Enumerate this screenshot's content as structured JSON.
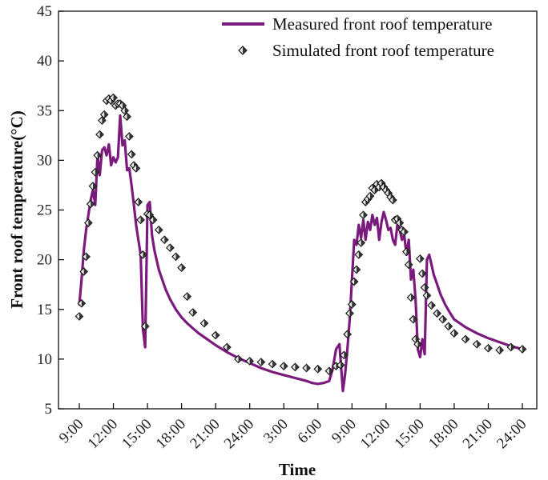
{
  "chart_data": {
    "type": "line",
    "title": "",
    "xlabel": "Time",
    "ylabel": "Front roof temperature(°C)",
    "ylim": [
      5,
      45
    ],
    "yticks": [
      5,
      10,
      15,
      20,
      25,
      30,
      35,
      40,
      45
    ],
    "xlim": [
      9,
      48
    ],
    "xticks": [
      {
        "x": 9,
        "label": "9:00"
      },
      {
        "x": 12,
        "label": "12:00"
      },
      {
        "x": 15,
        "label": "15:00"
      },
      {
        "x": 18,
        "label": "18:00"
      },
      {
        "x": 21,
        "label": "21:00"
      },
      {
        "x": 24,
        "label": "24:00"
      },
      {
        "x": 27,
        "label": "3:00"
      },
      {
        "x": 30,
        "label": "6:00"
      },
      {
        "x": 33,
        "label": "9:00"
      },
      {
        "x": 36,
        "label": "12:00"
      },
      {
        "x": 39,
        "label": "15:00"
      },
      {
        "x": 42,
        "label": "18:00"
      },
      {
        "x": 45,
        "label": "21:00"
      },
      {
        "x": 48,
        "label": "24:00"
      }
    ],
    "grid": false,
    "legend": "top-right",
    "series": [
      {
        "name": "Measured front roof temperature",
        "kind": "line",
        "color": "#7a1a7c",
        "x": [
          9.0,
          9.2,
          9.4,
          9.6,
          9.8,
          10.0,
          10.2,
          10.4,
          10.6,
          10.8,
          11.0,
          11.2,
          11.4,
          11.6,
          11.8,
          12.0,
          12.2,
          12.4,
          12.6,
          12.8,
          13.0,
          13.2,
          13.4,
          13.6,
          13.8,
          14.0,
          14.2,
          14.4,
          14.6,
          14.8,
          15.0,
          15.2,
          15.4,
          15.6,
          15.8,
          16.0,
          16.3,
          16.6,
          17.0,
          17.5,
          18.0,
          18.5,
          19.0,
          19.5,
          20.0,
          21.0,
          22.0,
          23.0,
          24.0,
          25.0,
          26.0,
          27.0,
          28.0,
          29.0,
          29.5,
          30.0,
          30.5,
          31.0,
          31.3,
          31.6,
          31.9,
          32.2,
          32.4,
          32.6,
          32.8,
          33.0,
          33.2,
          33.4,
          33.6,
          33.8,
          34.0,
          34.2,
          34.4,
          34.6,
          34.8,
          35.0,
          35.2,
          35.4,
          35.6,
          35.8,
          36.0,
          36.2,
          36.4,
          36.6,
          36.8,
          37.0,
          37.2,
          37.4,
          37.6,
          37.8,
          38.0,
          38.2,
          38.4,
          38.6,
          38.8,
          39.0,
          39.2,
          39.4,
          39.6,
          39.8,
          40.0,
          40.2,
          40.5,
          40.8,
          41.2,
          41.6,
          42.0,
          43.0,
          44.0,
          45.0,
          46.0,
          47.0,
          48.0
        ],
        "y": [
          15.5,
          18.0,
          21.0,
          23.0,
          24.5,
          26.0,
          27.0,
          25.5,
          30.5,
          28.5,
          31.0,
          31.3,
          30.5,
          31.6,
          29.5,
          30.3,
          29.8,
          30.3,
          34.5,
          31.5,
          32.0,
          29.0,
          29.2,
          27.5,
          25.5,
          23.5,
          22.0,
          20.5,
          13.0,
          11.2,
          25.5,
          25.8,
          22.5,
          21.0,
          20.0,
          19.0,
          18.0,
          17.0,
          16.0,
          15.0,
          14.2,
          13.6,
          13.1,
          12.6,
          12.2,
          11.4,
          10.7,
          10.1,
          9.6,
          9.1,
          8.7,
          8.4,
          8.1,
          7.8,
          7.6,
          7.5,
          7.6,
          7.8,
          9.0,
          11.0,
          11.5,
          6.8,
          8.5,
          11.0,
          14.0,
          18.0,
          22.0,
          21.5,
          23.5,
          22.2,
          24.0,
          22.0,
          23.8,
          23.0,
          24.5,
          23.5,
          24.2,
          22.0,
          23.8,
          24.8,
          24.0,
          23.0,
          23.2,
          22.0,
          21.5,
          23.5,
          23.0,
          22.0,
          22.5,
          20.5,
          22.0,
          18.0,
          19.0,
          16.0,
          11.0,
          10.2,
          12.0,
          10.5,
          20.0,
          20.5,
          19.5,
          18.5,
          17.5,
          16.5,
          15.5,
          14.7,
          14.0,
          13.2,
          12.6,
          12.1,
          11.7,
          11.3,
          11.0
        ]
      },
      {
        "name": "Simulated front roof temperature",
        "kind": "scatter",
        "marker": "diamond",
        "color": "#222222",
        "x": [
          9.0,
          9.2,
          9.4,
          9.6,
          9.8,
          10.0,
          10.2,
          10.4,
          10.6,
          10.8,
          11.0,
          11.2,
          11.4,
          11.6,
          11.8,
          12.0,
          12.2,
          12.4,
          12.6,
          12.8,
          13.0,
          13.2,
          13.4,
          13.6,
          13.8,
          14.0,
          14.2,
          14.4,
          14.6,
          14.8,
          15.0,
          15.2,
          15.5,
          16.0,
          16.5,
          17.0,
          17.5,
          18.0,
          18.5,
          19.0,
          20.0,
          21.0,
          22.0,
          23.0,
          24.0,
          25.0,
          26.0,
          27.0,
          28.0,
          29.0,
          30.0,
          31.0,
          31.6,
          32.0,
          32.3,
          32.6,
          32.8,
          33.0,
          33.2,
          33.4,
          33.6,
          33.8,
          34.0,
          34.2,
          34.4,
          34.6,
          34.8,
          35.0,
          35.2,
          35.4,
          35.6,
          35.8,
          36.0,
          36.2,
          36.4,
          36.6,
          36.8,
          37.0,
          37.2,
          37.4,
          37.6,
          37.8,
          38.0,
          38.2,
          38.4,
          38.6,
          38.8,
          39.0,
          39.2,
          39.4,
          39.6,
          40.0,
          40.5,
          41.0,
          41.5,
          42.0,
          43.0,
          44.0,
          45.0,
          46.0,
          47.0,
          48.0
        ],
        "y": [
          14.3,
          15.6,
          18.8,
          20.3,
          23.7,
          25.6,
          27.4,
          28.8,
          30.5,
          32.6,
          34.0,
          34.6,
          36.0,
          36.2,
          36.0,
          36.3,
          35.5,
          35.7,
          35.7,
          35.5,
          35.0,
          34.4,
          32.4,
          30.6,
          29.5,
          29.2,
          25.8,
          24.0,
          20.5,
          13.3,
          24.6,
          24.5,
          24.0,
          23.0,
          22.0,
          21.2,
          20.3,
          19.2,
          16.3,
          14.7,
          13.6,
          12.4,
          11.2,
          10.0,
          9.8,
          9.7,
          9.5,
          9.3,
          9.2,
          9.1,
          9.0,
          8.8,
          9.3,
          9.4,
          10.4,
          12.5,
          14.6,
          15.5,
          17.8,
          19.0,
          20.5,
          21.7,
          24.5,
          25.8,
          26.1,
          26.4,
          27.2,
          27.0,
          27.6,
          27.3,
          27.7,
          27.3,
          27.0,
          26.7,
          26.3,
          26.0,
          24.0,
          24.1,
          23.7,
          23.0,
          22.8,
          20.8,
          19.5,
          16.2,
          14.0,
          12.0,
          11.5,
          20.1,
          18.6,
          17.2,
          16.4,
          15.4,
          14.6,
          14.0,
          13.3,
          12.6,
          12.0,
          11.5,
          11.1,
          10.9,
          11.2,
          11.0
        ]
      }
    ]
  }
}
